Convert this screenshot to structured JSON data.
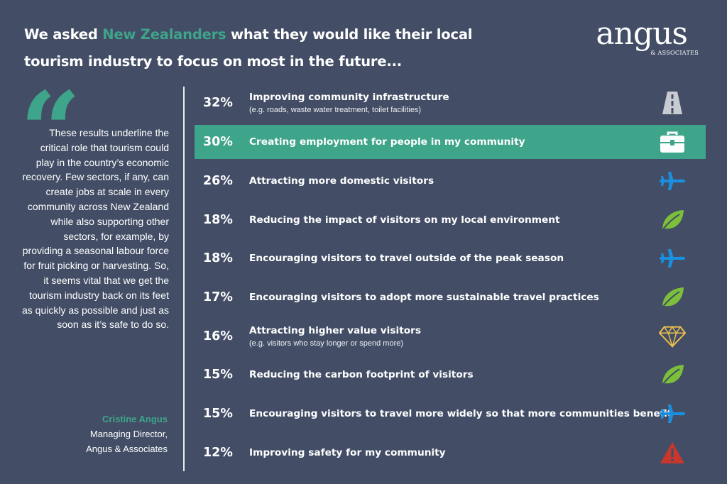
{
  "header": {
    "title_pre": "We asked ",
    "title_accent": "New Zealanders",
    "title_post": " what they would like their local tourism industry to focus on most in the future..."
  },
  "logo": {
    "word": "angus",
    "sub": "& ASSOCIATES"
  },
  "quote": {
    "mark": "“",
    "text": "These results underline the critical role that tourism could play in the country’s economic recovery.  Few sectors, if any, can create jobs at scale in every community across New Zealand while also supporting other sectors, for example, by providing a seasonal labour force for fruit picking or harvesting. So, it seems vital that we get the tourism industry back on its feet as quickly as possible and just as soon as it’s safe to do so.",
    "author_name": "Cristine Angus",
    "author_role1": "Managing Director,",
    "author_role2": "Angus & Associates"
  },
  "colors": {
    "background": "#434e66",
    "accent": "#3ea48a",
    "icon_blue": "#1a8fe0",
    "icon_green": "#7cbf3a",
    "icon_gold": "#f1c24a",
    "icon_red": "#c9372c",
    "icon_grey": "#c8ccd2"
  },
  "chart_data": {
    "type": "table",
    "highlighted_index": 1,
    "rows": [
      {
        "pct": "32%",
        "value": 32,
        "label": "Improving community infrastructure",
        "sub": "(e.g. roads, waste water treatment, toilet facilities)",
        "icon": "road-icon"
      },
      {
        "pct": "30%",
        "value": 30,
        "label": "Creating employment for people in my community",
        "sub": "",
        "icon": "briefcase-icon"
      },
      {
        "pct": "26%",
        "value": 26,
        "label": "Attracting more domestic visitors",
        "sub": "",
        "icon": "plane-icon"
      },
      {
        "pct": "18%",
        "value": 18,
        "label": "Reducing the impact of visitors on my local environment",
        "sub": "",
        "icon": "leaf-icon"
      },
      {
        "pct": "18%",
        "value": 18,
        "label": "Encouraging visitors to travel outside of the peak season",
        "sub": "",
        "icon": "plane-icon"
      },
      {
        "pct": "17%",
        "value": 17,
        "label": "Encouraging visitors to adopt more sustainable travel practices",
        "sub": "",
        "icon": "leaf-icon"
      },
      {
        "pct": "16%",
        "value": 16,
        "label": "Attracting higher value visitors",
        "sub": "(e.g. visitors who stay longer or spend more)",
        "icon": "diamond-icon"
      },
      {
        "pct": "15%",
        "value": 15,
        "label": "Reducing the carbon footprint of visitors",
        "sub": "",
        "icon": "leaf-icon"
      },
      {
        "pct": "15%",
        "value": 15,
        "label": "Encouraging visitors to travel more widely so that more communities benefit",
        "sub": "",
        "icon": "plane-icon"
      },
      {
        "pct": "12%",
        "value": 12,
        "label": "Improving safety for my community",
        "sub": "",
        "icon": "warning-icon"
      }
    ]
  }
}
